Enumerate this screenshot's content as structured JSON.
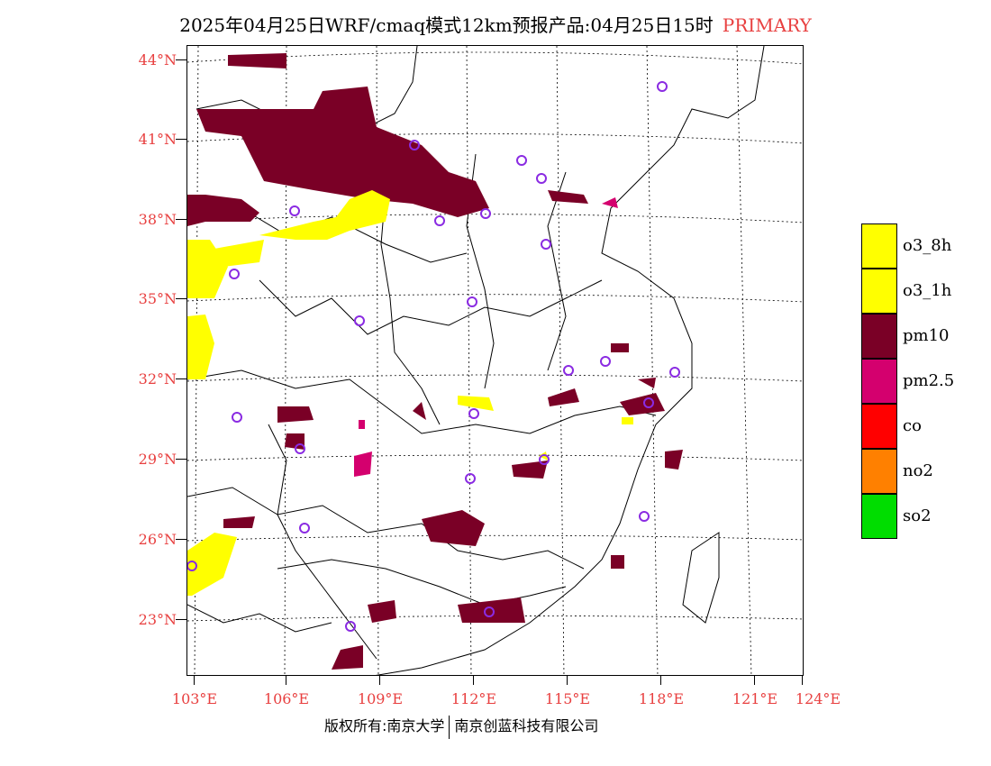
{
  "title": {
    "text": "2025年04月25日WRF/cmaq模式12km预报产品:04月25日15时",
    "tag": "PRIMARY"
  },
  "axes": {
    "lat_labels": [
      "44°N",
      "41°N",
      "38°N",
      "35°N",
      "32°N",
      "29°N",
      "26°N",
      "23°N"
    ],
    "lon_labels": [
      "103°E",
      "106°E",
      "109°E",
      "112°E",
      "115°E",
      "118°E",
      "121°E",
      "124°E"
    ]
  },
  "legend": [
    {
      "label": "o3_8h",
      "color": "#ffff00"
    },
    {
      "label": "o3_1h",
      "color": "#ffff00"
    },
    {
      "label": "pm10",
      "color": "#7a0026"
    },
    {
      "label": "pm2.5",
      "color": "#d4006e"
    },
    {
      "label": "co",
      "color": "#ff0000"
    },
    {
      "label": "no2",
      "color": "#ff8000"
    },
    {
      "label": "so2",
      "color": "#00dd00"
    }
  ],
  "footer": {
    "left": "版权所有:南京大学",
    "right": "南京创蓝科技有限公司"
  },
  "colors": {
    "axis_label": "#e84040",
    "pm10": "#7a0026",
    "pm25": "#d4006e",
    "o3": "#ffff00",
    "station": "#8a2be2"
  }
}
